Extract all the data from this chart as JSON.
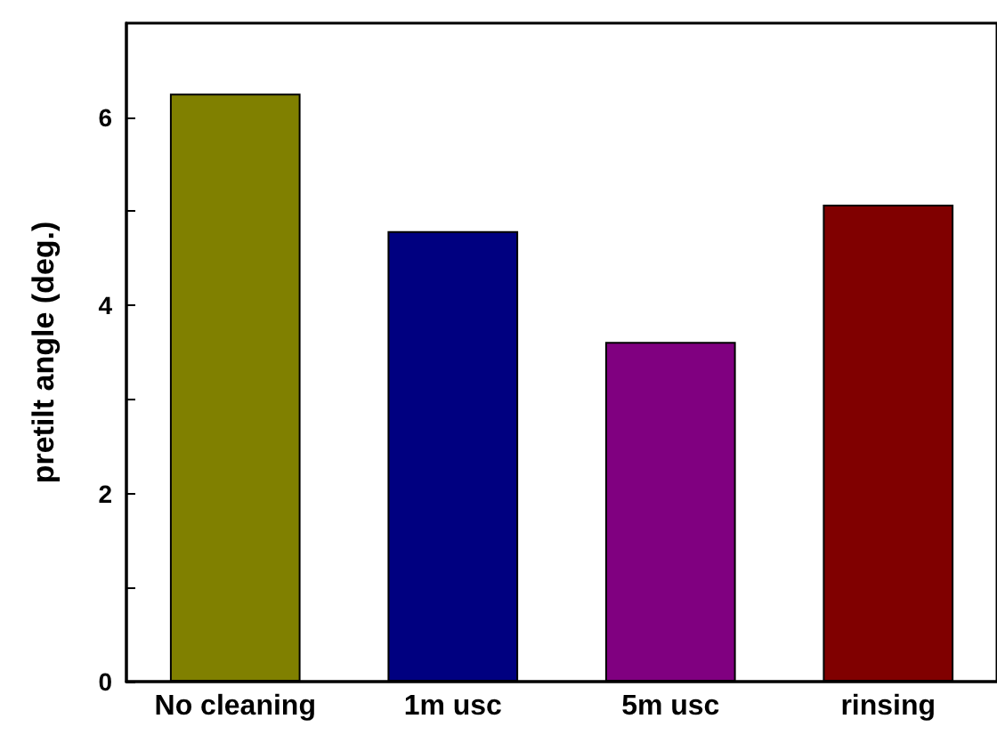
{
  "chart_data": {
    "type": "bar",
    "ylabel": "pretilt angle (deg.)",
    "categories": [
      "No cleaning",
      "1m usc",
      "5m usc",
      "rinsing"
    ],
    "values": [
      6.25,
      4.79,
      3.61,
      5.07
    ],
    "colors": [
      "#808000",
      "#000080",
      "#800080",
      "#800000"
    ],
    "ylim": [
      0,
      7
    ],
    "yticks": [
      0,
      {
        "value": 1,
        "label": null
      },
      2,
      {
        "value": 3,
        "label": null
      },
      4,
      {
        "value": 5,
        "label": null
      },
      6
    ],
    "grid": false
  }
}
